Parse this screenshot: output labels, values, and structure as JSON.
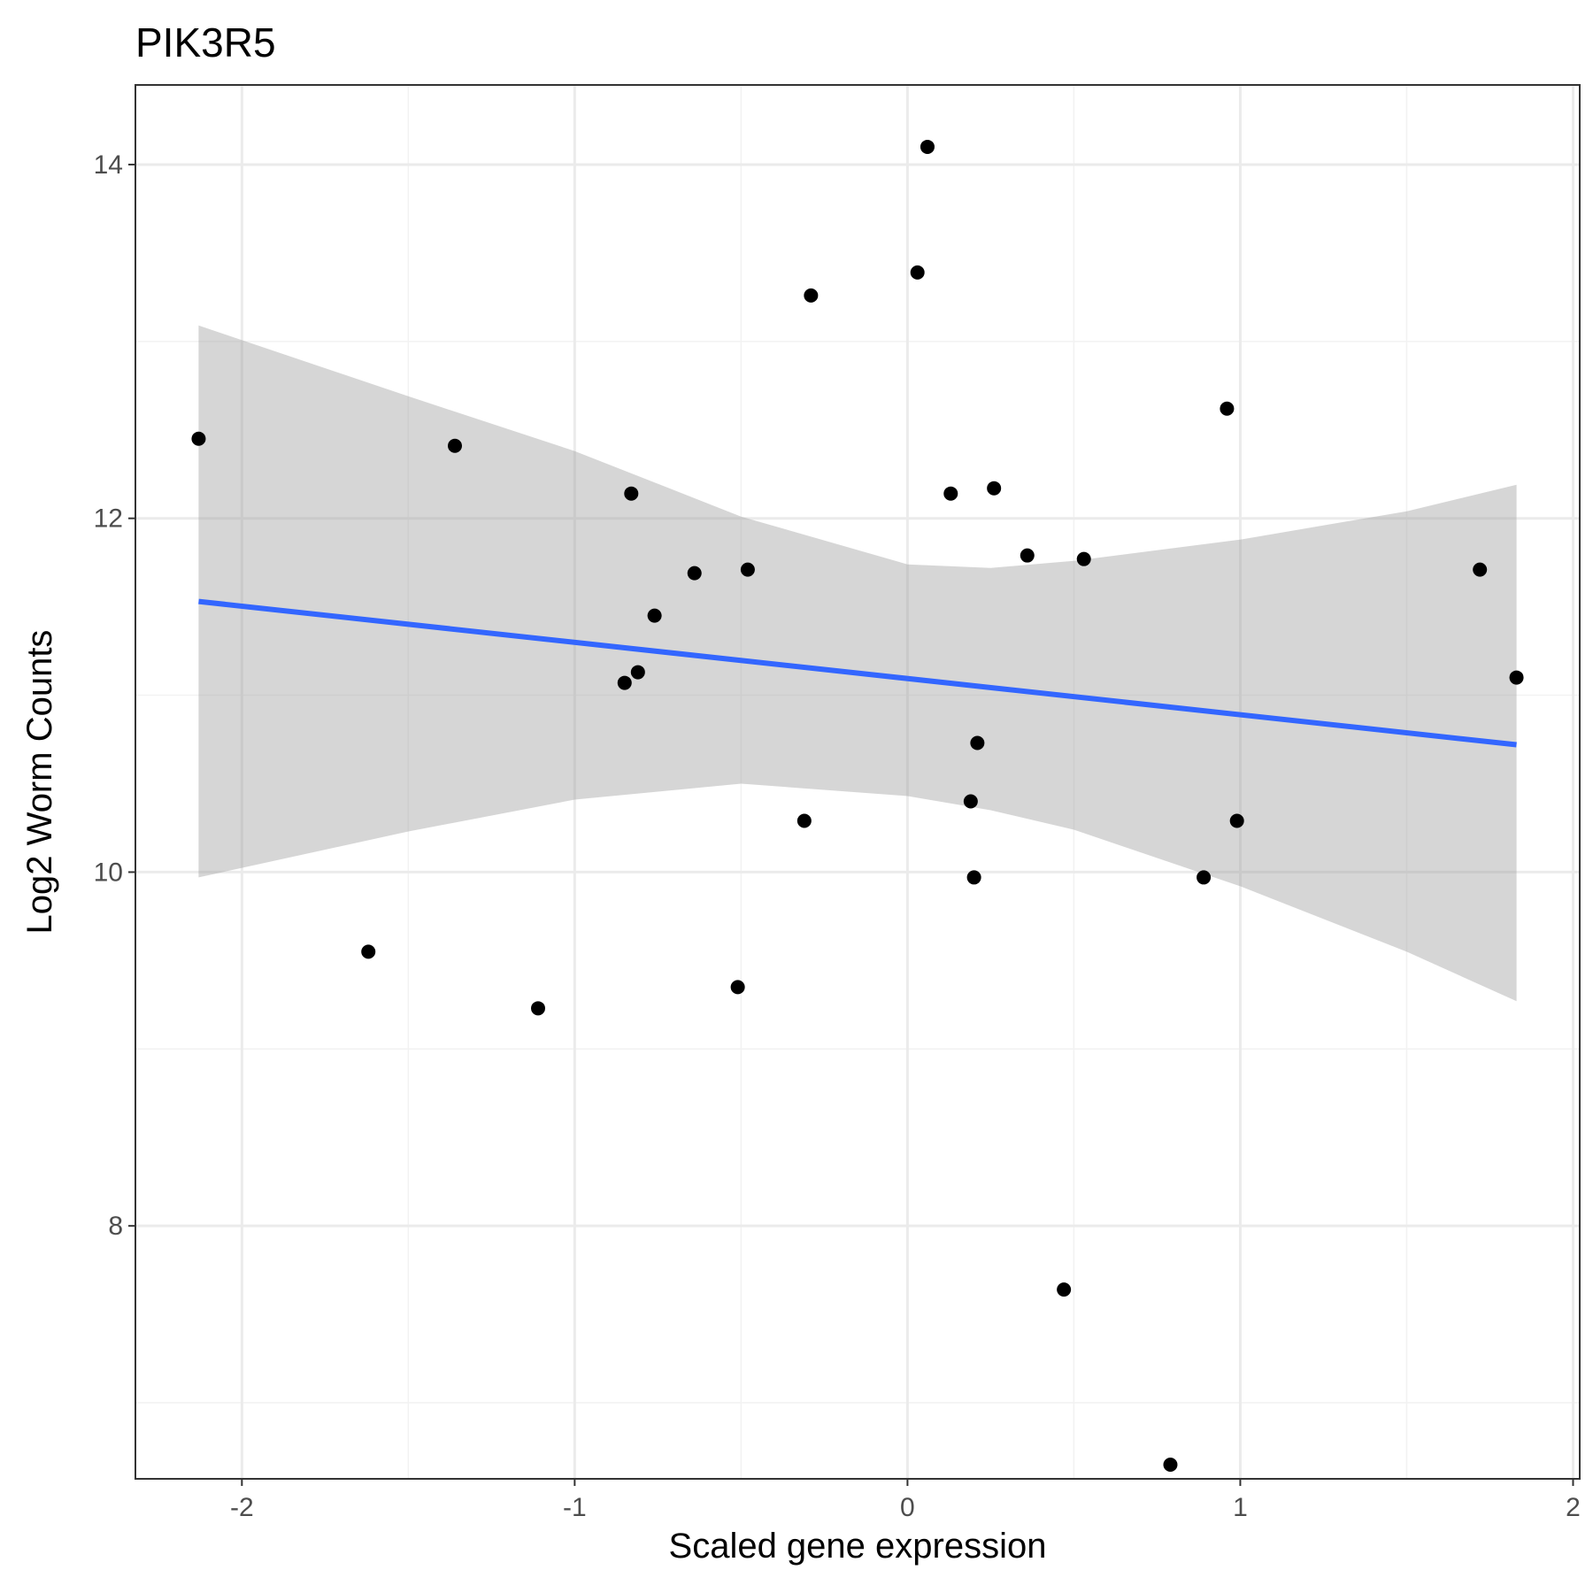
{
  "chart_data": {
    "type": "scatter",
    "title": "PIK3R5",
    "xlabel": "Scaled gene expression",
    "ylabel": "Log2 Worm Counts",
    "xlim": [
      -2.32,
      2.02
    ],
    "ylim": [
      6.57,
      14.45
    ],
    "x_ticks": [
      -2,
      -1,
      0,
      1,
      2
    ],
    "y_ticks": [
      8,
      10,
      12,
      14
    ],
    "x_tick_labels": [
      "-2",
      "-1",
      "0",
      "1",
      "2"
    ],
    "y_tick_labels": [
      "8",
      "10",
      "12",
      "14"
    ],
    "x_minor": [
      -1.5,
      -0.5,
      0.5,
      1.5
    ],
    "y_minor": [
      7,
      9,
      11,
      13
    ],
    "grid": true,
    "points": [
      {
        "x": 0.06,
        "y": 14.1
      },
      {
        "x": 0.03,
        "y": 13.39
      },
      {
        "x": -0.29,
        "y": 13.26
      },
      {
        "x": 0.96,
        "y": 12.62
      },
      {
        "x": -2.13,
        "y": 12.45
      },
      {
        "x": -1.36,
        "y": 12.41
      },
      {
        "x": -0.83,
        "y": 12.14
      },
      {
        "x": 0.13,
        "y": 12.14
      },
      {
        "x": 0.26,
        "y": 12.17
      },
      {
        "x": 0.36,
        "y": 11.79
      },
      {
        "x": 0.53,
        "y": 11.77
      },
      {
        "x": -0.48,
        "y": 11.71
      },
      {
        "x": -0.64,
        "y": 11.69
      },
      {
        "x": 1.72,
        "y": 11.71
      },
      {
        "x": -0.76,
        "y": 11.45
      },
      {
        "x": -0.81,
        "y": 11.13
      },
      {
        "x": -0.85,
        "y": 11.07
      },
      {
        "x": 1.83,
        "y": 11.1
      },
      {
        "x": 0.21,
        "y": 10.73
      },
      {
        "x": 0.19,
        "y": 10.4
      },
      {
        "x": -0.31,
        "y": 10.29
      },
      {
        "x": 0.99,
        "y": 10.29
      },
      {
        "x": 0.2,
        "y": 9.97
      },
      {
        "x": 0.89,
        "y": 9.97
      },
      {
        "x": -1.62,
        "y": 9.55
      },
      {
        "x": -1.11,
        "y": 9.23
      },
      {
        "x": -0.51,
        "y": 9.35
      },
      {
        "x": 0.47,
        "y": 7.64
      },
      {
        "x": 0.79,
        "y": 6.65
      }
    ],
    "fit_line": {
      "method": "linear",
      "x": [
        -2.13,
        1.83
      ],
      "y": [
        11.53,
        10.72
      ],
      "color": "#3366FF"
    },
    "confidence_band": {
      "color": "#999999",
      "x": [
        -2.13,
        -1.5,
        -1.0,
        -0.5,
        0.0,
        0.25,
        0.5,
        1.0,
        1.5,
        1.83
      ],
      "upper": [
        13.09,
        12.69,
        12.38,
        12.01,
        11.74,
        11.72,
        11.76,
        11.88,
        12.04,
        12.19
      ],
      "lower": [
        9.97,
        10.23,
        10.41,
        10.5,
        10.43,
        10.35,
        10.24,
        9.92,
        9.55,
        9.27
      ]
    },
    "colors": {
      "point": "#000000",
      "panel_border": "#333333",
      "grid_major": "#ebebeb",
      "grid_minor": "#f2f2f2"
    }
  }
}
